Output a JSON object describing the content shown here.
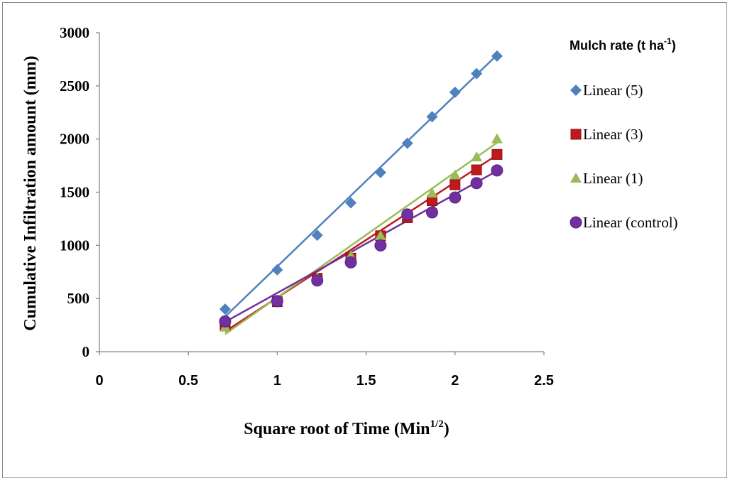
{
  "chart_data": {
    "type": "scatter",
    "xlabel": "Square root of Time (Min",
    "xlabel_sup": "1/2",
    "xlabel_end": ")",
    "ylabel": "Cumulative Infiltration amount (mm)",
    "xlim": [
      0,
      2.5
    ],
    "ylim": [
      0,
      3000
    ],
    "x_ticks": [
      0,
      0.5,
      1,
      1.5,
      2,
      2.5
    ],
    "x_tick_labels": [
      "0",
      "0.5",
      "1",
      "1.5",
      "2",
      "2.5"
    ],
    "y_ticks": [
      0,
      500,
      1000,
      1500,
      2000,
      2500,
      3000
    ],
    "y_tick_labels": [
      "0",
      "500",
      "1000",
      "1500",
      "2000",
      "2500",
      "3000"
    ],
    "grid": false,
    "legend_position": "right",
    "legend_title": "Mulch rate (t ha",
    "legend_title_sup": "-1",
    "legend_title_end": ")",
    "x": [
      0.707,
      1.0,
      1.225,
      1.414,
      1.581,
      1.732,
      1.871,
      2.0,
      2.121,
      2.236
    ],
    "series": [
      {
        "name": "Linear (5)",
        "marker": "diamond",
        "color": "#4f81bd",
        "values": [
          400,
          770,
          1095,
          1400,
          1685,
          1960,
          2210,
          2440,
          2615,
          2780
        ],
        "trend": [
          [
            0.707,
            330
          ],
          [
            2.236,
            2790
          ]
        ]
      },
      {
        "name": "Linear (3)",
        "marker": "square",
        "color": "#c0191c",
        "values": [
          245,
          470,
          690,
          880,
          1090,
          1260,
          1420,
          1570,
          1710,
          1855
        ],
        "trend": [
          [
            0.707,
            190
          ],
          [
            2.236,
            1850
          ]
        ]
      },
      {
        "name": "Linear (1)",
        "marker": "triangle",
        "color": "#9bbb59",
        "values": [
          230,
          480,
          700,
          900,
          1090,
          1290,
          1490,
          1660,
          1830,
          2000
        ],
        "trend": [
          [
            0.707,
            165
          ],
          [
            2.236,
            1965
          ]
        ]
      },
      {
        "name": "Linear (control)",
        "marker": "circle",
        "color": "#7030a0",
        "values": [
          285,
          475,
          670,
          840,
          1000,
          1290,
          1310,
          1450,
          1585,
          1705
        ],
        "trend": [
          [
            0.707,
            280
          ],
          [
            2.236,
            1700
          ]
        ]
      }
    ]
  }
}
